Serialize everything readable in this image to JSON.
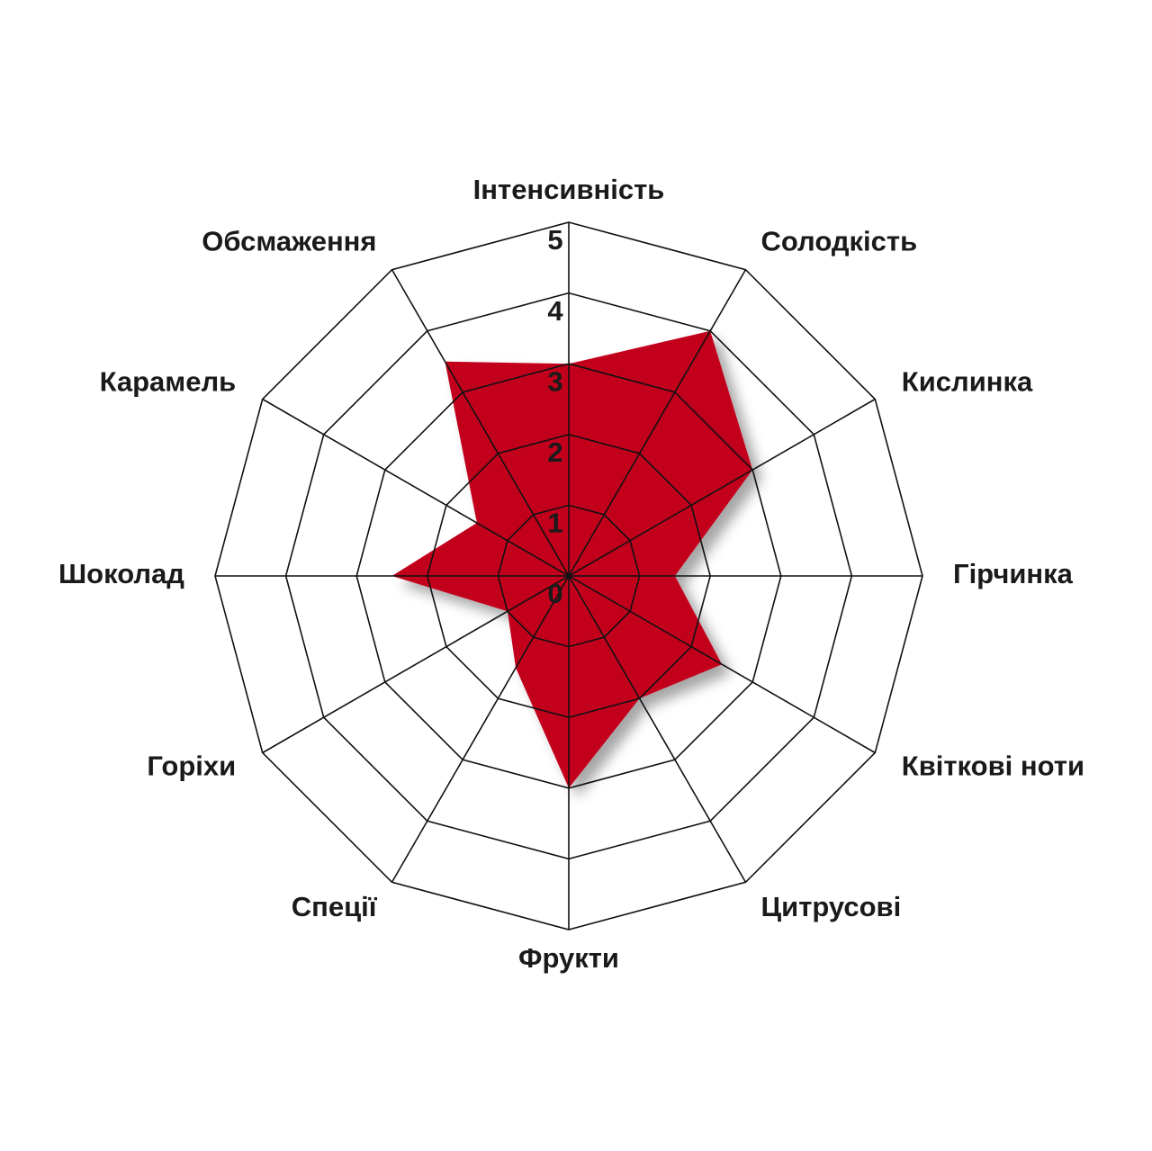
{
  "chart_data": {
    "type": "radar",
    "categories": [
      "Інтенсивність",
      "Солодкість",
      "Кислинка",
      "Гірчинка",
      "Квіткові ноти",
      "Цитрусові",
      "Фрукти",
      "Спеції",
      "Горіхи",
      "Шоколад",
      "Карамель",
      "Обсмаження"
    ],
    "values": [
      3,
      4,
      3,
      1.5,
      2.5,
      2,
      3,
      1.5,
      1,
      2.5,
      1.5,
      3.5
    ],
    "color": "#c3001d",
    "ylim": [
      0,
      5
    ],
    "yticks": [
      0,
      1,
      2,
      3,
      4,
      5
    ],
    "grid": true
  }
}
